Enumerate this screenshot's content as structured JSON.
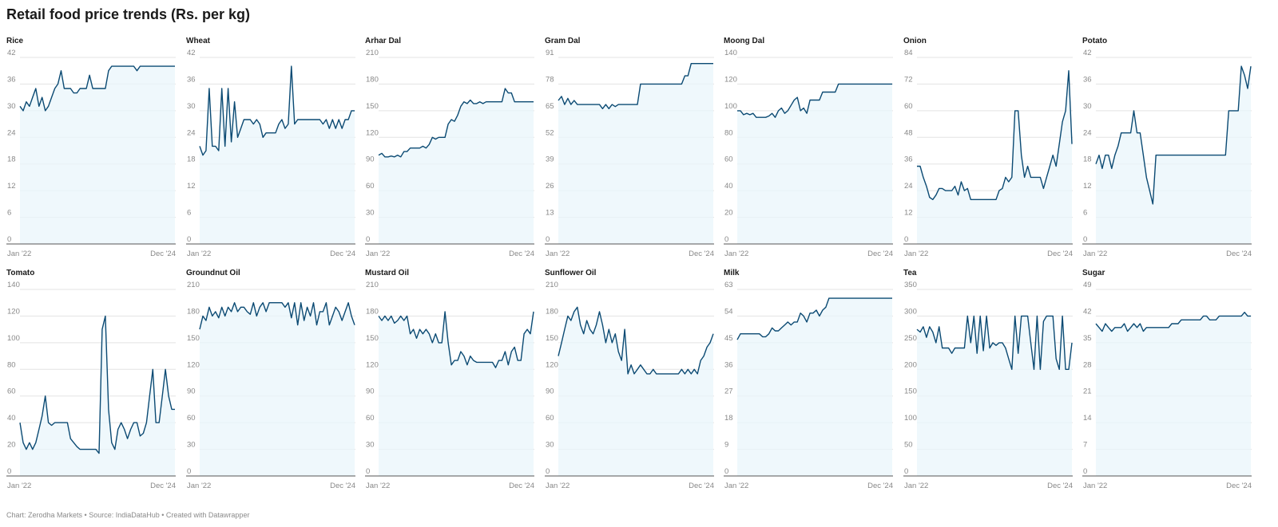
{
  "title": "Retail food price trends (Rs. per kg)",
  "footer": "Chart: Zerodha Markets • Source: IndiaDataHub • Created with Datawrapper",
  "colors": {
    "line": "#0b4a73",
    "area": "#eaf5fb",
    "grid": "#e3e3e3"
  },
  "chart_data": [
    {
      "type": "area",
      "title": "Rice",
      "yticks": [
        "0",
        "6",
        "12",
        "18",
        "24",
        "30",
        "36",
        "42"
      ],
      "ylim": [
        0,
        42
      ],
      "xlabels": [
        "Jan '22",
        "Dec '24"
      ],
      "values": [
        31,
        30,
        32,
        31,
        33,
        35,
        31,
        33,
        30,
        31,
        33,
        35,
        36,
        39,
        35,
        35,
        35,
        34,
        34,
        35,
        35,
        35,
        38,
        35,
        35,
        35,
        35,
        35,
        39,
        40,
        40,
        40,
        40,
        40,
        40,
        40,
        40,
        39,
        40,
        40,
        40,
        40,
        40,
        40,
        40,
        40,
        40,
        40,
        40,
        40
      ]
    },
    {
      "type": "area",
      "title": "Wheat",
      "yticks": [
        "0",
        "6",
        "12",
        "18",
        "24",
        "30",
        "36",
        "42"
      ],
      "ylim": [
        0,
        42
      ],
      "xlabels": [
        "Jan '22",
        "Dec '24"
      ],
      "values": [
        22,
        20,
        21,
        35,
        22,
        22,
        21,
        35,
        22,
        35,
        23,
        32,
        24,
        26,
        28,
        28,
        28,
        27,
        28,
        27,
        24,
        25,
        25,
        25,
        25,
        27,
        28,
        26,
        27,
        40,
        27,
        28,
        28,
        28,
        28,
        28,
        28,
        28,
        28,
        27,
        28,
        26,
        28,
        26,
        28,
        26,
        28,
        28,
        30,
        30
      ]
    },
    {
      "type": "area",
      "title": "Arhar Dal",
      "yticks": [
        "0",
        "30",
        "60",
        "90",
        "120",
        "150",
        "180",
        "210"
      ],
      "ylim": [
        0,
        210
      ],
      "xlabels": [
        "Jan '22",
        "Dec '24"
      ],
      "values": [
        100,
        102,
        98,
        98,
        99,
        98,
        100,
        98,
        104,
        104,
        108,
        108,
        108,
        108,
        110,
        108,
        112,
        120,
        118,
        120,
        120,
        120,
        135,
        140,
        138,
        145,
        155,
        160,
        158,
        162,
        158,
        158,
        160,
        158,
        160,
        160,
        160,
        160,
        160,
        160,
        175,
        170,
        170,
        160,
        160,
        160,
        160,
        160,
        160,
        160
      ]
    },
    {
      "type": "area",
      "title": "Gram Dal",
      "yticks": [
        "0",
        "13",
        "26",
        "39",
        "52",
        "65",
        "78",
        "91"
      ],
      "ylim": [
        0,
        91
      ],
      "xlabels": [
        "Jan '22",
        "Dec '24"
      ],
      "values": [
        70,
        72,
        68,
        71,
        68,
        70,
        68,
        68,
        68,
        68,
        68,
        68,
        68,
        68,
        66,
        68,
        66,
        68,
        67,
        68,
        68,
        68,
        68,
        68,
        68,
        68,
        78,
        78,
        78,
        78,
        78,
        78,
        78,
        78,
        78,
        78,
        78,
        78,
        78,
        78,
        82,
        82,
        88,
        88,
        88,
        88,
        88,
        88,
        88,
        88
      ]
    },
    {
      "type": "area",
      "title": "Moong Dal",
      "yticks": [
        "0",
        "20",
        "40",
        "60",
        "80",
        "100",
        "120",
        "140"
      ],
      "ylim": [
        0,
        140
      ],
      "xlabels": [
        "Jan '22",
        "Dec '24"
      ],
      "values": [
        100,
        100,
        97,
        98,
        97,
        98,
        95,
        95,
        95,
        95,
        96,
        98,
        95,
        100,
        102,
        98,
        100,
        104,
        108,
        110,
        100,
        102,
        98,
        108,
        108,
        108,
        108,
        114,
        114,
        114,
        114,
        114,
        120,
        120,
        120,
        120,
        120,
        120,
        120,
        120,
        120,
        120,
        120,
        120,
        120,
        120,
        120,
        120,
        120,
        120
      ]
    },
    {
      "type": "area",
      "title": "Onion",
      "yticks": [
        "0",
        "12",
        "24",
        "36",
        "48",
        "60",
        "72",
        "84"
      ],
      "ylim": [
        0,
        84
      ],
      "xlabels": [
        "Jan '22",
        "Dec '24"
      ],
      "values": [
        35,
        35,
        30,
        26,
        21,
        20,
        22,
        25,
        25,
        24,
        24,
        24,
        26,
        22,
        28,
        24,
        25,
        20,
        20,
        20,
        20,
        20,
        20,
        20,
        20,
        20,
        24,
        25,
        30,
        28,
        30,
        60,
        60,
        40,
        30,
        35,
        30,
        30,
        30,
        30,
        25,
        30,
        35,
        40,
        35,
        45,
        55,
        60,
        78,
        45
      ]
    },
    {
      "type": "area",
      "title": "Potato",
      "yticks": [
        "0",
        "6",
        "12",
        "18",
        "24",
        "30",
        "36",
        "42"
      ],
      "ylim": [
        0,
        42
      ],
      "xlabels": [
        "Jan '22",
        "Dec '24"
      ],
      "values": [
        18,
        20,
        17,
        20,
        20,
        17,
        20,
        22,
        25,
        25,
        25,
        25,
        30,
        25,
        25,
        20,
        15,
        12,
        9,
        20,
        20,
        20,
        20,
        20,
        20,
        20,
        20,
        20,
        20,
        20,
        20,
        20,
        20,
        20,
        20,
        20,
        20,
        20,
        20,
        20,
        20,
        20,
        30,
        30,
        30,
        30,
        40,
        38,
        35,
        40
      ]
    },
    {
      "type": "area",
      "title": "Tomato",
      "yticks": [
        "0",
        "20",
        "40",
        "60",
        "80",
        "100",
        "120",
        "140"
      ],
      "ylim": [
        0,
        140
      ],
      "xlabels": [
        "Jan '22",
        "Dec '24"
      ],
      "values": [
        40,
        25,
        20,
        25,
        20,
        25,
        35,
        45,
        60,
        40,
        38,
        40,
        40,
        40,
        40,
        40,
        28,
        25,
        22,
        20,
        20,
        20,
        20,
        20,
        20,
        17,
        110,
        120,
        50,
        25,
        20,
        35,
        40,
        35,
        28,
        35,
        40,
        40,
        30,
        32,
        40,
        60,
        80,
        40,
        40,
        60,
        80,
        60,
        50,
        50
      ]
    },
    {
      "type": "area",
      "title": "Groundnut Oil",
      "yticks": [
        "0",
        "30",
        "60",
        "90",
        "120",
        "150",
        "180",
        "210"
      ],
      "ylim": [
        0,
        210
      ],
      "xlabels": [
        "Jan '22",
        "Dec '24"
      ],
      "values": [
        165,
        180,
        175,
        190,
        180,
        185,
        178,
        190,
        180,
        190,
        185,
        195,
        185,
        190,
        190,
        185,
        182,
        195,
        180,
        190,
        195,
        185,
        195,
        195,
        195,
        195,
        195,
        190,
        195,
        178,
        195,
        170,
        195,
        175,
        190,
        180,
        195,
        170,
        185,
        185,
        195,
        170,
        180,
        190,
        185,
        175,
        185,
        195,
        180,
        170
      ]
    },
    {
      "type": "area",
      "title": "Mustard Oil",
      "yticks": [
        "0",
        "30",
        "60",
        "90",
        "120",
        "150",
        "180",
        "210"
      ],
      "ylim": [
        0,
        210
      ],
      "xlabels": [
        "Jan '22",
        "Dec '24"
      ],
      "values": [
        180,
        175,
        180,
        175,
        180,
        172,
        175,
        180,
        175,
        180,
        160,
        165,
        155,
        165,
        160,
        165,
        160,
        150,
        160,
        150,
        150,
        185,
        150,
        125,
        130,
        130,
        140,
        135,
        125,
        135,
        130,
        128,
        128,
        128,
        128,
        128,
        128,
        122,
        130,
        130,
        140,
        125,
        140,
        145,
        130,
        130,
        160,
        165,
        160,
        185
      ]
    },
    {
      "type": "area",
      "title": "Sunflower Oil",
      "yticks": [
        "0",
        "30",
        "60",
        "90",
        "120",
        "150",
        "180",
        "210"
      ],
      "ylim": [
        0,
        210
      ],
      "xlabels": [
        "Jan '22",
        "Dec '24"
      ],
      "values": [
        135,
        150,
        165,
        180,
        175,
        185,
        190,
        170,
        160,
        175,
        165,
        160,
        170,
        185,
        170,
        150,
        165,
        150,
        160,
        140,
        130,
        165,
        115,
        125,
        115,
        120,
        125,
        120,
        115,
        115,
        120,
        115,
        115,
        115,
        115,
        115,
        115,
        115,
        115,
        120,
        115,
        120,
        115,
        120,
        115,
        130,
        135,
        145,
        150,
        160
      ]
    },
    {
      "type": "area",
      "title": "Milk",
      "yticks": [
        "0",
        "9",
        "18",
        "27",
        "36",
        "45",
        "54",
        "63"
      ],
      "ylim": [
        0,
        63
      ],
      "xlabels": [
        "Jan '22",
        "Dec '24"
      ],
      "values": [
        46,
        48,
        48,
        48,
        48,
        48,
        48,
        48,
        47,
        47,
        48,
        50,
        49,
        49,
        50,
        51,
        52,
        51,
        52,
        52,
        55,
        54,
        52,
        55,
        55,
        56,
        54,
        56,
        57,
        60,
        60,
        60,
        60,
        60,
        60,
        60,
        60,
        60,
        60,
        60,
        60,
        60,
        60,
        60,
        60,
        60,
        60,
        60,
        60,
        60
      ]
    },
    {
      "type": "area",
      "title": "Tea",
      "yticks": [
        "0",
        "50",
        "100",
        "150",
        "200",
        "250",
        "300",
        "350"
      ],
      "ylim": [
        0,
        350
      ],
      "xlabels": [
        "Jan '22",
        "Dec '24"
      ],
      "values": [
        275,
        270,
        280,
        260,
        280,
        270,
        250,
        280,
        240,
        240,
        240,
        230,
        240,
        240,
        240,
        240,
        300,
        250,
        300,
        230,
        300,
        235,
        300,
        240,
        250,
        245,
        250,
        250,
        240,
        220,
        200,
        300,
        230,
        300,
        300,
        300,
        250,
        200,
        300,
        200,
        290,
        300,
        300,
        300,
        220,
        200,
        300,
        200,
        200,
        250
      ]
    },
    {
      "type": "area",
      "title": "Sugar",
      "yticks": [
        "0",
        "7",
        "14",
        "21",
        "28",
        "35",
        "42",
        "49"
      ],
      "ylim": [
        0,
        49
      ],
      "xlabels": [
        "Jan '22",
        "Dec '24"
      ],
      "values": [
        40,
        39,
        38,
        40,
        39,
        38,
        39,
        39,
        39,
        40,
        38,
        39,
        40,
        39,
        40,
        38,
        39,
        39,
        39,
        39,
        39,
        39,
        39,
        39,
        40,
        40,
        40,
        41,
        41,
        41,
        41,
        41,
        41,
        41,
        42,
        42,
        41,
        41,
        41,
        42,
        42,
        42,
        42,
        42,
        42,
        42,
        42,
        43,
        42,
        42
      ]
    }
  ]
}
